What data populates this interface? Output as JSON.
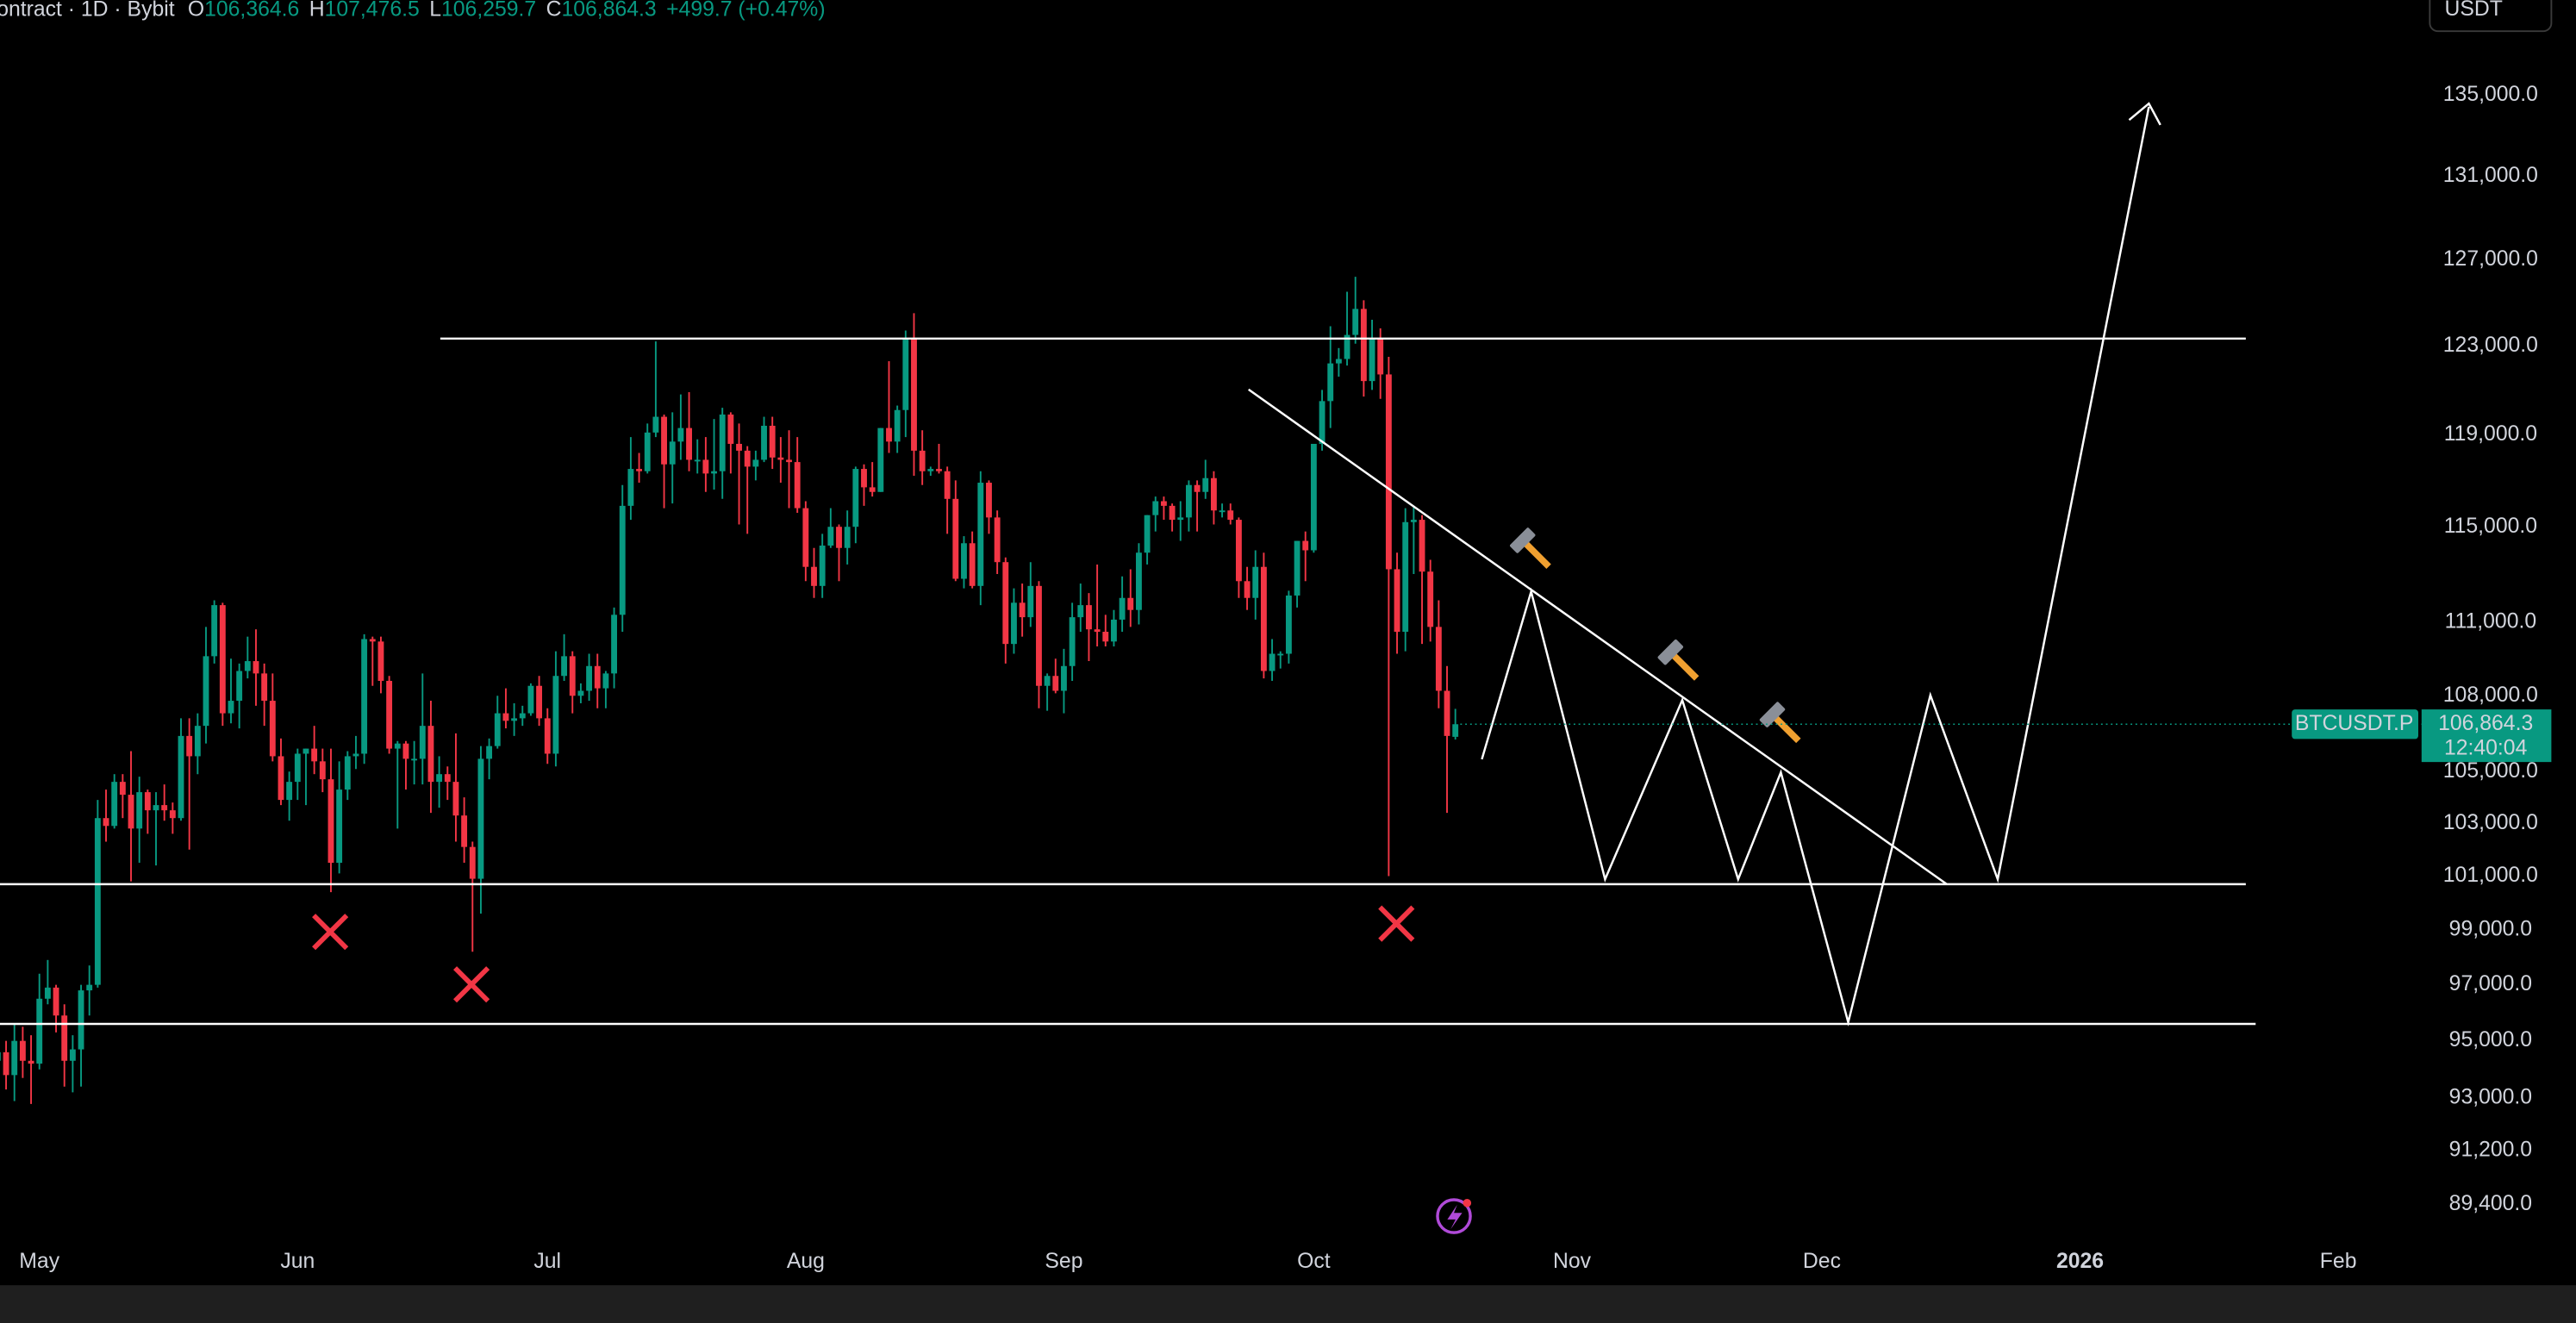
{
  "header": {
    "title": "ontract · 1D · Bybit",
    "fields": [
      {
        "key": "O",
        "value": "106,364.6"
      },
      {
        "key": "H",
        "value": "107,476.5"
      },
      {
        "key": "L",
        "value": "106,259.7"
      },
      {
        "key": "C",
        "value": "106,864.3"
      }
    ],
    "change": "+499.7 (+0.47%)"
  },
  "currency": "USDT",
  "chart_data": {
    "type": "candlestick",
    "log_scale": true,
    "grid": false,
    "up_color": "#089981",
    "down_color": "#f23645",
    "xlim": [
      -4.73,
      286.2
    ],
    "ylim": [
      86860,
      139870
    ],
    "xticks": [
      {
        "value": 0,
        "label": "May"
      },
      {
        "value": 31,
        "label": "Jun"
      },
      {
        "value": 61,
        "label": "Jul"
      },
      {
        "value": 92,
        "label": "Aug"
      },
      {
        "value": 123,
        "label": "Sep"
      },
      {
        "value": 153,
        "label": "Oct"
      },
      {
        "value": 184,
        "label": "Nov"
      },
      {
        "value": 214,
        "label": "Dec"
      },
      {
        "value": 245,
        "label": "2026"
      },
      {
        "value": 276,
        "label": "Feb"
      }
    ],
    "yticks": [
      {
        "value": 135000,
        "label": "135,000.0"
      },
      {
        "value": 131000,
        "label": "131,000.0"
      },
      {
        "value": 127000,
        "label": "127,000.0"
      },
      {
        "value": 123000,
        "label": "123,000.0"
      },
      {
        "value": 119000,
        "label": "119,000.0"
      },
      {
        "value": 115000,
        "label": "115,000.0"
      },
      {
        "value": 111000,
        "label": "111,000.0"
      },
      {
        "value": 108000,
        "label": "108,000.0"
      },
      {
        "value": 105000,
        "label": "105,000.0"
      },
      {
        "value": 103000,
        "label": "103,000.0"
      },
      {
        "value": 101000,
        "label": "101,000.0"
      },
      {
        "value": 99000,
        "label": "99,000.0"
      },
      {
        "value": 97000,
        "label": "97,000.0"
      },
      {
        "value": 95000,
        "label": "95,000.0"
      },
      {
        "value": 93000,
        "label": "93,000.0"
      },
      {
        "value": 91200,
        "label": "91,200.0"
      },
      {
        "value": 89400,
        "label": "89,400.0"
      }
    ],
    "price_tag": {
      "symbol": "BTCUSDT.P",
      "label": "106,864.3",
      "countdown": "12:40:04"
    },
    "candles": [
      [
        -5,
        94300,
        95400,
        93800,
        94600
      ],
      [
        -4,
        94600,
        95000,
        93300,
        93800
      ],
      [
        -3,
        93800,
        95600,
        92900,
        95000
      ],
      [
        -2,
        95000,
        95500,
        93700,
        94300
      ],
      [
        -1,
        94300,
        95200,
        92800,
        94200
      ],
      [
        0,
        94200,
        97400,
        94000,
        96500
      ],
      [
        1,
        96500,
        97900,
        96300,
        96900
      ],
      [
        2,
        96900,
        97000,
        95300,
        95900
      ],
      [
        3,
        95900,
        96300,
        93400,
        94300
      ],
      [
        4,
        94300,
        95200,
        93200,
        94700
      ],
      [
        5,
        94700,
        97000,
        93400,
        96800
      ],
      [
        6,
        96800,
        97700,
        95900,
        97000
      ],
      [
        7,
        97000,
        103900,
        96900,
        103200
      ],
      [
        8,
        103200,
        104300,
        102300,
        102900
      ],
      [
        9,
        102900,
        104900,
        102800,
        104600
      ],
      [
        10,
        104600,
        104900,
        103200,
        104100
      ],
      [
        11,
        104100,
        105800,
        100800,
        102800
      ],
      [
        12,
        102800,
        104800,
        101500,
        104200
      ],
      [
        13,
        104200,
        104300,
        102600,
        103500
      ],
      [
        14,
        103500,
        104200,
        101400,
        103700
      ],
      [
        15,
        103700,
        104500,
        103100,
        103500
      ],
      [
        16,
        103500,
        103800,
        102600,
        103200
      ],
      [
        17,
        103200,
        107100,
        103100,
        106400
      ],
      [
        18,
        106400,
        107100,
        102000,
        105600
      ],
      [
        19,
        105600,
        107300,
        104900,
        106800
      ],
      [
        20,
        106800,
        110800,
        106100,
        109600
      ],
      [
        21,
        109600,
        111900,
        109300,
        111700
      ],
      [
        22,
        111700,
        111800,
        106800,
        107300
      ],
      [
        23,
        107300,
        109500,
        106900,
        107800
      ],
      [
        24,
        107800,
        109300,
        106700,
        109000
      ],
      [
        25,
        109000,
        110400,
        108700,
        109400
      ],
      [
        26,
        109400,
        110700,
        107600,
        108900
      ],
      [
        27,
        108900,
        109300,
        106800,
        107800
      ],
      [
        28,
        107800,
        108900,
        105400,
        105600
      ],
      [
        29,
        105600,
        106300,
        103700,
        103900
      ],
      [
        30,
        103900,
        105000,
        103100,
        104600
      ],
      [
        31,
        104600,
        105900,
        103900,
        105700
      ],
      [
        32,
        105700,
        105900,
        103700,
        105900
      ],
      [
        33,
        105900,
        106800,
        104900,
        105400
      ],
      [
        34,
        105400,
        105900,
        104200,
        104700
      ],
      [
        35,
        104700,
        105900,
        100400,
        101500
      ],
      [
        36,
        101500,
        105400,
        101100,
        104300
      ],
      [
        37,
        104300,
        105800,
        103900,
        105600
      ],
      [
        38,
        105600,
        106400,
        105100,
        105700
      ],
      [
        39,
        105700,
        110500,
        105300,
        110300
      ],
      [
        40,
        110300,
        110400,
        108400,
        110200
      ],
      [
        41,
        110200,
        110400,
        108100,
        108600
      ],
      [
        42,
        108600,
        108800,
        105700,
        105900
      ],
      [
        43,
        105900,
        106200,
        102800,
        106100
      ],
      [
        44,
        106100,
        106200,
        104300,
        105500
      ],
      [
        45,
        105500,
        106200,
        104500,
        105500
      ],
      [
        46,
        105500,
        108900,
        104500,
        106800
      ],
      [
        47,
        106800,
        107800,
        103400,
        104600
      ],
      [
        48,
        104600,
        105600,
        103600,
        104900
      ],
      [
        49,
        104900,
        105200,
        103900,
        104600
      ],
      [
        50,
        104600,
        106500,
        102300,
        103300
      ],
      [
        51,
        103300,
        104000,
        101500,
        102100
      ],
      [
        52,
        102100,
        102300,
        98200,
        100900
      ],
      [
        53,
        100900,
        106000,
        99600,
        105500
      ],
      [
        54,
        105500,
        106300,
        104700,
        106000
      ],
      [
        55,
        106000,
        108000,
        105900,
        107300
      ],
      [
        56,
        107300,
        108300,
        106700,
        107000
      ],
      [
        57,
        107000,
        107700,
        106400,
        107100
      ],
      [
        58,
        107100,
        107600,
        106800,
        107300
      ],
      [
        59,
        107300,
        108500,
        107200,
        108400
      ],
      [
        60,
        108400,
        108800,
        106800,
        107100
      ],
      [
        61,
        107100,
        107500,
        105300,
        105700
      ],
      [
        62,
        105700,
        109800,
        105200,
        108800
      ],
      [
        63,
        108800,
        110500,
        108600,
        109600
      ],
      [
        64,
        109600,
        109800,
        107300,
        108000
      ],
      [
        65,
        108000,
        108500,
        107700,
        108200
      ],
      [
        66,
        108200,
        109700,
        107800,
        109200
      ],
      [
        67,
        109200,
        109700,
        107500,
        108300
      ],
      [
        68,
        108300,
        109000,
        107500,
        108900
      ],
      [
        69,
        108900,
        111600,
        108300,
        111300
      ],
      [
        70,
        111300,
        116800,
        110600,
        115900
      ],
      [
        71,
        115900,
        118900,
        115300,
        117500
      ],
      [
        72,
        117500,
        118200,
        116900,
        117400
      ],
      [
        73,
        117400,
        119500,
        117300,
        119100
      ],
      [
        74,
        119100,
        123200,
        118900,
        119800
      ],
      [
        75,
        119800,
        119900,
        115800,
        117700
      ],
      [
        76,
        117700,
        120000,
        116000,
        118700
      ],
      [
        77,
        118700,
        120800,
        117900,
        119300
      ],
      [
        78,
        119300,
        120900,
        117400,
        117900
      ],
      [
        79,
        117900,
        118800,
        117300,
        117900
      ],
      [
        80,
        117900,
        118900,
        116500,
        117300
      ],
      [
        81,
        117300,
        119700,
        116600,
        117400
      ],
      [
        82,
        117400,
        120200,
        116200,
        119900
      ],
      [
        83,
        119900,
        120000,
        117300,
        118600
      ],
      [
        84,
        118600,
        119500,
        115100,
        118300
      ],
      [
        85,
        118300,
        118500,
        114700,
        117600
      ],
      [
        86,
        117600,
        118300,
        117000,
        117900
      ],
      [
        87,
        117900,
        119800,
        117800,
        119400
      ],
      [
        88,
        119400,
        119800,
        117500,
        118000
      ],
      [
        89,
        118000,
        118900,
        116900,
        117900
      ],
      [
        90,
        117900,
        119200,
        115800,
        117800
      ],
      [
        91,
        117800,
        118900,
        115600,
        115800
      ],
      [
        92,
        115800,
        116100,
        112700,
        113300
      ],
      [
        93,
        113300,
        114100,
        112000,
        112500
      ],
      [
        94,
        112500,
        114700,
        112000,
        114200
      ],
      [
        95,
        114200,
        115800,
        114100,
        115000
      ],
      [
        96,
        115000,
        115100,
        112700,
        114100
      ],
      [
        97,
        114100,
        115700,
        113400,
        115000
      ],
      [
        98,
        115000,
        117600,
        114300,
        117500
      ],
      [
        99,
        117500,
        117700,
        115900,
        116700
      ],
      [
        100,
        116700,
        117800,
        116300,
        116500
      ],
      [
        101,
        116500,
        119300,
        116500,
        119300
      ],
      [
        102,
        119300,
        122300,
        118200,
        118700
      ],
      [
        103,
        118700,
        120300,
        118200,
        120100
      ],
      [
        104,
        120100,
        123700,
        118900,
        123300
      ],
      [
        105,
        123300,
        124500,
        117200,
        118300
      ],
      [
        106,
        118300,
        119200,
        116800,
        117400
      ],
      [
        107,
        117400,
        117600,
        117200,
        117500
      ],
      [
        108,
        117500,
        118600,
        117300,
        117400
      ],
      [
        109,
        117400,
        117600,
        114700,
        116200
      ],
      [
        110,
        116200,
        117000,
        112700,
        112800
      ],
      [
        111,
        112800,
        114600,
        112400,
        114300
      ],
      [
        112,
        114300,
        114800,
        112400,
        112500
      ],
      [
        113,
        112500,
        117400,
        111700,
        116900
      ],
      [
        114,
        116900,
        117000,
        114700,
        115400
      ],
      [
        115,
        115400,
        115700,
        113000,
        113500
      ],
      [
        116,
        113500,
        113700,
        109300,
        110100
      ],
      [
        117,
        110100,
        112400,
        109700,
        111800
      ],
      [
        118,
        111800,
        112600,
        110400,
        111200
      ],
      [
        119,
        111200,
        113500,
        110800,
        112500
      ],
      [
        120,
        112500,
        112700,
        107500,
        108400
      ],
      [
        121,
        108400,
        108900,
        107400,
        108800
      ],
      [
        122,
        108800,
        109500,
        108100,
        108200
      ],
      [
        123,
        108200,
        109900,
        107300,
        109200
      ],
      [
        124,
        109200,
        111800,
        108600,
        111200
      ],
      [
        125,
        111200,
        112600,
        110600,
        111700
      ],
      [
        126,
        111700,
        112200,
        109400,
        110700
      ],
      [
        127,
        110700,
        113400,
        110000,
        110600
      ],
      [
        128,
        110600,
        111300,
        110000,
        110200
      ],
      [
        129,
        110200,
        111500,
        110000,
        111100
      ],
      [
        130,
        111100,
        112900,
        110600,
        112000
      ],
      [
        131,
        112000,
        113200,
        110800,
        111500
      ],
      [
        132,
        111500,
        114300,
        110900,
        113900
      ],
      [
        133,
        113900,
        115500,
        113400,
        115500
      ],
      [
        134,
        115500,
        116300,
        114800,
        116100
      ],
      [
        135,
        116100,
        116300,
        115300,
        115900
      ],
      [
        136,
        115900,
        116000,
        114800,
        115300
      ],
      [
        137,
        115300,
        116100,
        114400,
        115400
      ],
      [
        138,
        115400,
        117000,
        114800,
        116800
      ],
      [
        139,
        116800,
        117000,
        114800,
        116500
      ],
      [
        140,
        116500,
        117900,
        116200,
        117100
      ],
      [
        141,
        117100,
        117400,
        115100,
        115700
      ],
      [
        142,
        115700,
        116000,
        115400,
        115700
      ],
      [
        143,
        115700,
        116000,
        115100,
        115300
      ],
      [
        144,
        115300,
        115400,
        112000,
        112700
      ],
      [
        145,
        112700,
        113300,
        111500,
        112000
      ],
      [
        146,
        112000,
        114000,
        111100,
        113300
      ],
      [
        147,
        113300,
        113900,
        108700,
        109000
      ],
      [
        148,
        109000,
        110300,
        108600,
        109700
      ],
      [
        149,
        109700,
        109800,
        109100,
        109700
      ],
      [
        150,
        109700,
        112300,
        109300,
        112100
      ],
      [
        151,
        112100,
        114400,
        111600,
        114400
      ],
      [
        152,
        114400,
        114800,
        112700,
        114000
      ],
      [
        153,
        114000,
        118600,
        113900,
        118600
      ],
      [
        154,
        118600,
        121000,
        118300,
        120500
      ],
      [
        155,
        120500,
        123900,
        119300,
        122200
      ],
      [
        156,
        122200,
        122900,
        121600,
        122400
      ],
      [
        157,
        122400,
        125500,
        122100,
        123500
      ],
      [
        158,
        123500,
        126200,
        123100,
        124700
      ],
      [
        159,
        124700,
        125100,
        120700,
        121400
      ],
      [
        160,
        121400,
        124200,
        121000,
        123300
      ],
      [
        161,
        123300,
        123800,
        120600,
        121700
      ],
      [
        162,
        121700,
        122500,
        101000,
        113200
      ],
      [
        163,
        113200,
        113900,
        109700,
        110600
      ],
      [
        164,
        110600,
        115800,
        109800,
        115200
      ],
      [
        165,
        115200,
        115900,
        113000,
        115300
      ],
      [
        166,
        115300,
        115500,
        110100,
        113100
      ],
      [
        167,
        113100,
        113600,
        110200,
        110800
      ],
      [
        168,
        110800,
        111900,
        107500,
        108200
      ],
      [
        169,
        108200,
        109200,
        103400,
        106400
      ],
      [
        170,
        106364.6,
        107476.5,
        106259.7,
        106864.3
      ]
    ]
  }
}
